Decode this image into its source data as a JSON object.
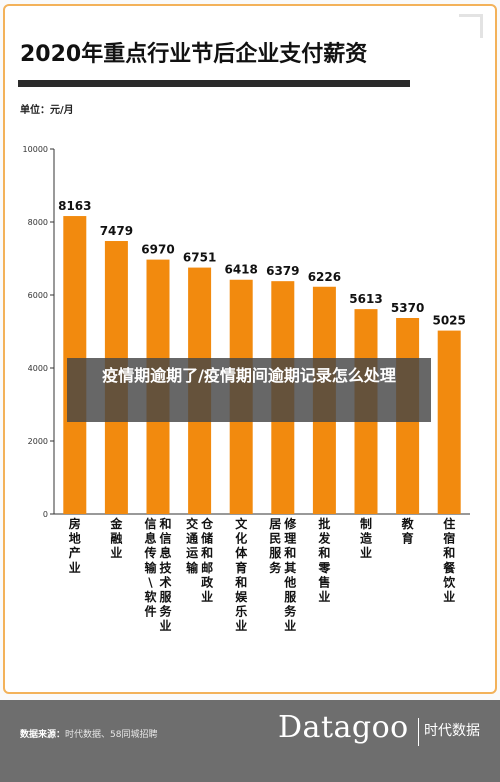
{
  "header": {
    "title": "2020年重点行业节后企业支付薪资",
    "unit": "单位：元/月"
  },
  "overlay": {
    "text": "疫情期逾期了/疫情期间逾期记录怎么处理"
  },
  "footer": {
    "source_label": "数据来源：",
    "source_text": "时代数据、58同城招聘",
    "brand": "Datagoo",
    "brand_cn": "时代数据"
  },
  "colors": {
    "bar": "#f28a0e",
    "accent_border": "#f3b25a",
    "axis": "#333333",
    "footer_bg": "#6e6e6e"
  },
  "chart_data": {
    "type": "bar",
    "title": "2020年重点行业节后企业支付薪资",
    "ylabel": "单位：元/月",
    "xlabel": "",
    "ylim": [
      0,
      10000
    ],
    "yticks": [
      0,
      2000,
      4000,
      6000,
      8000,
      10000
    ],
    "grid": false,
    "categories": [
      "房地产业",
      "金融业",
      "和信息技术服务业",
      "信息传输\\软件",
      "仓储和邮政业",
      "交通运输",
      "文化体育和娱乐业",
      "居民服务",
      "修理和其他服务业",
      "批发和零售业",
      "制造业",
      "教育",
      "住宿和餐饮业"
    ],
    "bars": [
      {
        "label_cols": [
          "房地产业"
        ],
        "value": 8163
      },
      {
        "label_cols": [
          "金融业"
        ],
        "value": 7479
      },
      {
        "label_cols": [
          "信息传输\\软件",
          "和信息技术服务业"
        ],
        "value": 6970
      },
      {
        "label_cols": [
          "交通运输",
          "仓储和邮政业"
        ],
        "value": 6751
      },
      {
        "label_cols": [
          "文化体育和娱乐业"
        ],
        "value": 6418
      },
      {
        "label_cols": [
          "居民服务",
          "修理和其他服务业"
        ],
        "value": 6379
      },
      {
        "label_cols": [
          "批发和零售业"
        ],
        "value": 6226
      },
      {
        "label_cols": [
          "制造业"
        ],
        "value": 5613
      },
      {
        "label_cols": [
          "教育"
        ],
        "value": 5370
      },
      {
        "label_cols": [
          "住宿和餐饮业"
        ],
        "value": 5025
      }
    ]
  }
}
